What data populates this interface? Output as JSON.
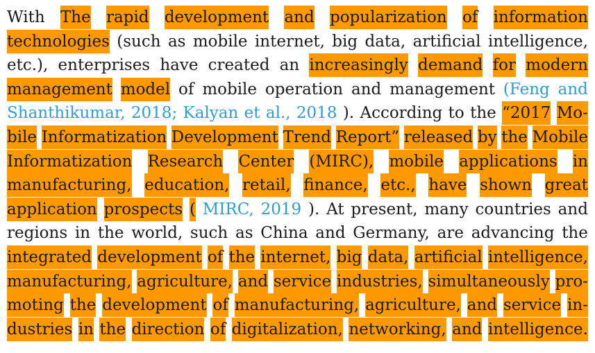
{
  "document": {
    "highlight_color": "#ff9900",
    "link_color": "#2b9ed6",
    "lines": [
      [
        {
          "t": "With"
        },
        {
          "t": "The",
          "h": true
        },
        {
          "t": "rapid",
          "h": true
        },
        {
          "t": "development",
          "h": true
        },
        {
          "t": "and",
          "h": true
        },
        {
          "t": "popularization",
          "h": true
        },
        {
          "t": "of",
          "h": true
        },
        {
          "t": "information",
          "h": true
        }
      ],
      [
        {
          "t": "technologies",
          "h": true
        },
        {
          "t": "(such"
        },
        {
          "t": "as"
        },
        {
          "t": "mobile"
        },
        {
          "t": "internet,"
        },
        {
          "t": "big"
        },
        {
          "t": "data,"
        },
        {
          "t": "artificial"
        },
        {
          "t": "intelligence,"
        }
      ],
      [
        {
          "t": "etc.),"
        },
        {
          "t": "enterprises"
        },
        {
          "t": "have"
        },
        {
          "t": "created"
        },
        {
          "t": "an"
        },
        {
          "t": "increasingly",
          "h": true
        },
        {
          "t": "demand",
          "h": true
        },
        {
          "t": "for",
          "h": true
        },
        {
          "t": "modern",
          "h": true
        }
      ],
      [
        {
          "t": "management",
          "h": true
        },
        {
          "t": "model",
          "h": true
        },
        {
          "t": "of"
        },
        {
          "t": "mobile"
        },
        {
          "t": "operation"
        },
        {
          "t": "and"
        },
        {
          "t": "management"
        },
        {
          "t": "(Feng",
          "link": true
        },
        {
          "t": "and",
          "link": true
        }
      ],
      [
        {
          "t": "Shanthikumar,",
          "link": true
        },
        {
          "t": "2018;",
          "link": true
        },
        {
          "t": "Kalyan",
          "link": true
        },
        {
          "t": "et",
          "link": true
        },
        {
          "t": "al.,",
          "link": true
        },
        {
          "t": "2018",
          "link": true
        },
        {
          "t": ")."
        },
        {
          "t": "According"
        },
        {
          "t": "to"
        },
        {
          "t": "the"
        },
        {
          "t": "“2017",
          "h": true
        },
        {
          "t": "Mo-",
          "h": true
        }
      ],
      [
        {
          "t": "bile",
          "h": true
        },
        {
          "t": "Informatization",
          "h": true
        },
        {
          "t": "Development",
          "h": true
        },
        {
          "t": "Trend",
          "h": true
        },
        {
          "t": "Report”",
          "h": true
        },
        {
          "t": "released",
          "h": true
        },
        {
          "t": "by",
          "h": true
        },
        {
          "t": "the",
          "h": true
        },
        {
          "t": "Mobile",
          "h": true
        }
      ],
      [
        {
          "t": "Informatization",
          "h": true
        },
        {
          "t": "Research",
          "h": true
        },
        {
          "t": "Center",
          "h": true
        },
        {
          "t": "(MIRC),",
          "h": true
        },
        {
          "t": "mobile",
          "h": true
        },
        {
          "t": "applications",
          "h": true
        },
        {
          "t": "in",
          "h": true
        }
      ],
      [
        {
          "t": "manufacturing,",
          "h": true
        },
        {
          "t": "education,",
          "h": true
        },
        {
          "t": "retail,",
          "h": true
        },
        {
          "t": "finance,",
          "h": true
        },
        {
          "t": "etc.,",
          "h": true
        },
        {
          "t": "have",
          "h": true
        },
        {
          "t": "shown",
          "h": true
        },
        {
          "t": "great",
          "h": true
        }
      ],
      [
        {
          "t": "application",
          "h": true
        },
        {
          "t": "prospects",
          "h": true
        },
        {
          "t": "(",
          "h": true
        },
        {
          "t": "MIRC,",
          "link": true
        },
        {
          "t": "2019",
          "link": true
        },
        {
          "t": ")."
        },
        {
          "t": "At"
        },
        {
          "t": "present,"
        },
        {
          "t": "many"
        },
        {
          "t": "countries"
        },
        {
          "t": "and"
        }
      ],
      [
        {
          "t": "regions"
        },
        {
          "t": "in"
        },
        {
          "t": "the"
        },
        {
          "t": "world,"
        },
        {
          "t": "such"
        },
        {
          "t": "as"
        },
        {
          "t": "China"
        },
        {
          "t": "and"
        },
        {
          "t": "Germany,"
        },
        {
          "t": "are"
        },
        {
          "t": "advancing"
        },
        {
          "t": "the"
        }
      ],
      [
        {
          "t": "integrated",
          "h": true
        },
        {
          "t": "development",
          "h": true
        },
        {
          "t": "of",
          "h": true
        },
        {
          "t": "the",
          "h": true
        },
        {
          "t": "internet,",
          "h": true
        },
        {
          "t": "big",
          "h": true
        },
        {
          "t": "data,",
          "h": true
        },
        {
          "t": "artificial",
          "h": true
        },
        {
          "t": "intelligence,",
          "h": true
        }
      ],
      [
        {
          "t": "manufacturing,",
          "h": true
        },
        {
          "t": "agriculture,",
          "h": true
        },
        {
          "t": "and",
          "h": true
        },
        {
          "t": "service",
          "h": true
        },
        {
          "t": "industries,",
          "h": true
        },
        {
          "t": "simultaneously",
          "h": true
        },
        {
          "t": "pro-",
          "h": true
        }
      ],
      [
        {
          "t": "moting",
          "h": true
        },
        {
          "t": "the",
          "h": true
        },
        {
          "t": "development",
          "h": true
        },
        {
          "t": "of",
          "h": true
        },
        {
          "t": "manufacturing,",
          "h": true
        },
        {
          "t": "agriculture,",
          "h": true
        },
        {
          "t": "and",
          "h": true
        },
        {
          "t": "service",
          "h": true
        },
        {
          "t": "in-",
          "h": true
        }
      ],
      [
        {
          "t": "dustries",
          "h": true
        },
        {
          "t": "in",
          "h": true
        },
        {
          "t": "the",
          "h": true
        },
        {
          "t": "direction",
          "h": true
        },
        {
          "t": "of",
          "h": true
        },
        {
          "t": "digitalization,",
          "h": true
        },
        {
          "t": "networking,",
          "h": true
        },
        {
          "t": "and",
          "h": true
        },
        {
          "t": "intelligence.",
          "h": true
        }
      ]
    ]
  }
}
